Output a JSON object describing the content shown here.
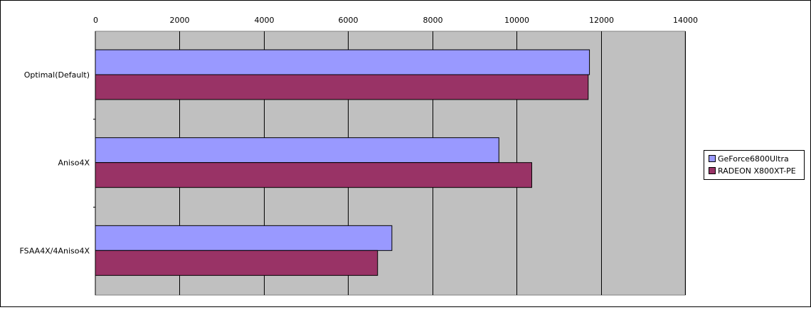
{
  "chart_data": {
    "type": "bar",
    "orientation": "horizontal",
    "categories": [
      "Optimal(Default)",
      "Aniso4X",
      "FSAA4X/4Aniso4X"
    ],
    "series": [
      {
        "name": "GeForce6800Ultra",
        "color": "#9999ff",
        "values": [
          11730,
          9580,
          7040
        ]
      },
      {
        "name": "RADEON X800XT-PE",
        "color": "#993366",
        "values": [
          11700,
          10360,
          6700
        ]
      }
    ],
    "xlim": [
      0,
      14000
    ],
    "xticks": [
      "0",
      "2000",
      "4000",
      "6000",
      "8000",
      "10000",
      "12000",
      "14000"
    ],
    "x_axis_position": "top",
    "grid": true,
    "plot_background": "#c0c0c0",
    "legend_position": "right"
  }
}
